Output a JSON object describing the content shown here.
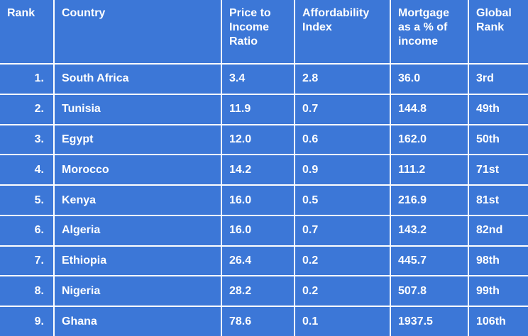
{
  "table": {
    "headers": {
      "rank": "Rank",
      "country": "Country",
      "price_to_income": "Price to Income Ratio",
      "affordability": "Affordability Index",
      "mortgage_pct": "Mortgage as a % of income",
      "global_rank": "Global Rank"
    },
    "rows": [
      {
        "rank": "1.",
        "country": "South Africa",
        "price_to_income": "3.4",
        "affordability": "2.8",
        "mortgage_pct": "36.0",
        "global_rank": "3rd"
      },
      {
        "rank": "2.",
        "country": "Tunisia",
        "price_to_income": "11.9",
        "affordability": "0.7",
        "mortgage_pct": "144.8",
        "global_rank": "49th"
      },
      {
        "rank": "3.",
        "country": "Egypt",
        "price_to_income": "12.0",
        "affordability": "0.6",
        "mortgage_pct": "162.0",
        "global_rank": "50th"
      },
      {
        "rank": "4.",
        "country": "Morocco",
        "price_to_income": "14.2",
        "affordability": "0.9",
        "mortgage_pct": "111.2",
        "global_rank": "71st"
      },
      {
        "rank": "5.",
        "country": "Kenya",
        "price_to_income": "16.0",
        "affordability": "0.5",
        "mortgage_pct": "216.9",
        "global_rank": "81st"
      },
      {
        "rank": "6.",
        "country": "Algeria",
        "price_to_income": "16.0",
        "affordability": "0.7",
        "mortgage_pct": "143.2",
        "global_rank": "82nd"
      },
      {
        "rank": "7.",
        "country": "Ethiopia",
        "price_to_income": "26.4",
        "affordability": "0.2",
        "mortgage_pct": "445.7",
        "global_rank": "98th"
      },
      {
        "rank": "8.",
        "country": "Nigeria",
        "price_to_income": "28.2",
        "affordability": "0.2",
        "mortgage_pct": "507.8",
        "global_rank": "99th"
      },
      {
        "rank": "9.",
        "country": "Ghana",
        "price_to_income": "78.6",
        "affordability": "0.1",
        "mortgage_pct": "1937.5",
        "global_rank": "106th"
      }
    ]
  },
  "colors": {
    "cell_background": "#3c77d7",
    "text": "#ffffff",
    "grid_lines": "#ffffff"
  }
}
